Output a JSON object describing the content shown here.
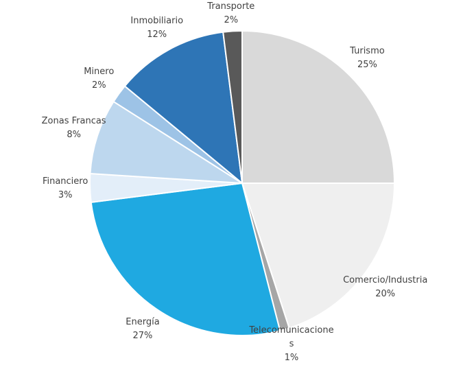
{
  "chart_data": {
    "type": "pie",
    "categories": [
      "Turismo",
      "Comercio/Industria",
      "Telecomunicaciones",
      "Energía",
      "Financiero",
      "Zonas Francas",
      "Minero",
      "Inmobiliario",
      "Transporte"
    ],
    "values": [
      25,
      20,
      1,
      27,
      3,
      8,
      2,
      12,
      2
    ],
    "value_labels": [
      "25%",
      "20%",
      "1%",
      "27%",
      "3%",
      "8%",
      "2%",
      "12%",
      "2%"
    ],
    "colors": [
      "#d9d9d9",
      "#efefef",
      "#a6a6a6",
      "#1fa9e1",
      "#e3eef9",
      "#bdd7ee",
      "#9dc3e6",
      "#2e75b6",
      "#595959"
    ]
  }
}
